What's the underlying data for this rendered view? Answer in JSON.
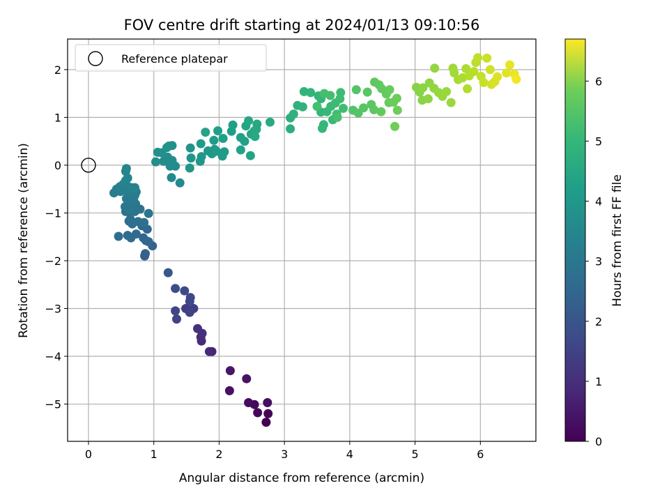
{
  "chart_data": {
    "type": "scatter",
    "title": "FOV centre drift starting at 2024/01/13 09:10:56",
    "xlabel": "Angular distance from reference (arcmin)",
    "ylabel": "Rotation from reference (arcmin)",
    "xlim": [
      -0.32,
      6.85
    ],
    "ylim": [
      -5.78,
      2.64
    ],
    "x_ticks": [
      0,
      1,
      2,
      3,
      4,
      5,
      6
    ],
    "y_ticks": [
      2,
      1,
      0,
      -1,
      -2,
      -3,
      -4,
      -5
    ],
    "x_tick_labels": [
      "0",
      "1",
      "2",
      "3",
      "4",
      "5",
      "6"
    ],
    "y_tick_labels": [
      "2",
      "1",
      "0",
      "−1",
      "−2",
      "−3",
      "−4",
      "−5"
    ],
    "grid": true,
    "legend": {
      "placement": "top-left",
      "entries": [
        "Reference platepar"
      ]
    },
    "reference_point": {
      "x": 0,
      "y": 0,
      "label": "Reference platepar"
    },
    "colorbar": {
      "label": "Hours from first FF file",
      "range": [
        0,
        6.7
      ],
      "ticks": [
        0,
        1,
        2,
        3,
        4,
        5,
        6
      ],
      "tick_labels": [
        "0",
        "1",
        "2",
        "3",
        "4",
        "5",
        "6"
      ],
      "colormap": "viridis"
    },
    "points": [
      [
        2.72,
        -5.38,
        0.0
      ],
      [
        2.75,
        -5.2,
        0.05
      ],
      [
        2.59,
        -5.18,
        0.1
      ],
      [
        2.54,
        -5.01,
        0.15
      ],
      [
        2.45,
        -4.97,
        0.2
      ],
      [
        2.74,
        -4.97,
        0.25
      ],
      [
        2.16,
        -4.72,
        0.3
      ],
      [
        2.42,
        -4.47,
        0.35
      ],
      [
        2.17,
        -4.3,
        0.42
      ],
      [
        1.89,
        -3.9,
        0.7
      ],
      [
        1.85,
        -3.9,
        0.75
      ],
      [
        1.73,
        -3.68,
        0.8
      ],
      [
        1.72,
        -3.6,
        0.85
      ],
      [
        1.74,
        -3.52,
        0.9
      ],
      [
        1.67,
        -3.42,
        0.95
      ],
      [
        1.49,
        -3.0,
        1.2
      ],
      [
        1.61,
        -3.0,
        1.25
      ],
      [
        1.55,
        -3.08,
        1.3
      ],
      [
        1.35,
        -3.22,
        1.35
      ],
      [
        1.33,
        -3.05,
        1.4
      ],
      [
        1.55,
        -2.85,
        1.45
      ],
      [
        1.56,
        -2.77,
        1.5
      ],
      [
        1.47,
        -2.63,
        1.55
      ],
      [
        1.33,
        -2.58,
        1.6
      ],
      [
        1.22,
        -2.25,
        1.85
      ],
      [
        0.86,
        -1.9,
        2.05
      ],
      [
        0.87,
        -1.85,
        2.08
      ],
      [
        0.98,
        -1.69,
        2.12
      ],
      [
        0.88,
        -1.58,
        2.15
      ],
      [
        0.84,
        -1.52,
        2.18
      ],
      [
        0.92,
        -1.6,
        2.2
      ],
      [
        0.9,
        -1.34,
        2.23
      ],
      [
        0.82,
        -1.27,
        2.26
      ],
      [
        0.73,
        -1.44,
        2.3
      ],
      [
        0.65,
        -1.52,
        2.32
      ],
      [
        0.6,
        -1.47,
        2.35
      ],
      [
        0.46,
        -1.49,
        2.38
      ],
      [
        0.62,
        -1.17,
        2.4
      ],
      [
        0.64,
        -1.13,
        2.42
      ],
      [
        0.67,
        -1.23,
        2.44
      ],
      [
        0.76,
        -1.18,
        2.46
      ],
      [
        0.85,
        -1.2,
        2.48
      ],
      [
        0.57,
        -0.97,
        2.5
      ],
      [
        0.63,
        -0.99,
        2.52
      ],
      [
        0.71,
        -0.97,
        2.54
      ],
      [
        0.74,
        -0.89,
        2.56
      ],
      [
        0.79,
        -0.92,
        2.58
      ],
      [
        0.72,
        -0.81,
        2.6
      ],
      [
        0.69,
        -0.85,
        2.62
      ],
      [
        0.92,
        -1.01,
        2.64
      ],
      [
        0.56,
        -0.87,
        2.66
      ],
      [
        0.62,
        -0.9,
        2.68
      ],
      [
        0.66,
        -0.78,
        2.7
      ],
      [
        0.69,
        -0.71,
        2.72
      ],
      [
        0.58,
        -0.7,
        2.74
      ],
      [
        0.63,
        -0.66,
        2.76
      ],
      [
        0.71,
        -0.63,
        2.78
      ],
      [
        0.73,
        -0.56,
        2.8
      ],
      [
        0.62,
        -0.55,
        2.82
      ],
      [
        0.56,
        -0.53,
        2.84
      ],
      [
        0.49,
        -0.55,
        2.86
      ],
      [
        0.43,
        -0.5,
        2.88
      ],
      [
        0.39,
        -0.58,
        2.9
      ],
      [
        0.48,
        -0.45,
        2.92
      ],
      [
        0.53,
        -0.4,
        2.94
      ],
      [
        0.59,
        -0.43,
        2.96
      ],
      [
        0.66,
        -0.47,
        2.98
      ],
      [
        0.71,
        -0.47,
        3.0
      ],
      [
        0.57,
        -0.32,
        3.02
      ],
      [
        0.6,
        -0.27,
        3.04
      ],
      [
        0.57,
        -0.13,
        3.06
      ],
      [
        0.58,
        -0.07,
        3.08
      ],
      [
        1.27,
        -0.26,
        3.15
      ],
      [
        1.4,
        -0.37,
        3.18
      ],
      [
        1.25,
        -0.02,
        3.2
      ],
      [
        1.33,
        -0.02,
        3.22
      ],
      [
        1.28,
        0.1,
        3.24
      ],
      [
        1.21,
        0.17,
        3.26
      ],
      [
        1.15,
        0.08,
        3.28
      ],
      [
        1.03,
        0.07,
        3.3
      ],
      [
        1.12,
        0.26,
        3.32
      ],
      [
        1.06,
        0.27,
        3.34
      ],
      [
        1.23,
        0.4,
        3.36
      ],
      [
        1.28,
        0.41,
        3.38
      ],
      [
        1.2,
        0.37,
        3.4
      ],
      [
        1.56,
        0.36,
        3.45
      ],
      [
        1.57,
        0.15,
        3.48
      ],
      [
        1.55,
        -0.06,
        3.5
      ],
      [
        1.71,
        0.08,
        3.52
      ],
      [
        1.73,
        0.18,
        3.54
      ],
      [
        1.83,
        0.3,
        3.56
      ],
      [
        1.93,
        0.33,
        3.58
      ],
      [
        1.89,
        0.24,
        3.6
      ],
      [
        1.96,
        0.29,
        3.62
      ],
      [
        2.05,
        0.19,
        3.64
      ],
      [
        2.08,
        0.28,
        3.66
      ],
      [
        1.72,
        0.45,
        3.68
      ],
      [
        1.92,
        0.52,
        3.7
      ],
      [
        1.98,
        0.72,
        3.72
      ],
      [
        2.06,
        0.56,
        3.74
      ],
      [
        2.19,
        0.71,
        3.76
      ],
      [
        2.21,
        0.84,
        3.78
      ],
      [
        2.33,
        0.58,
        3.8
      ],
      [
        2.39,
        0.5,
        3.82
      ],
      [
        2.33,
        0.32,
        3.84
      ],
      [
        2.48,
        0.2,
        3.86
      ],
      [
        1.79,
        0.69,
        3.88
      ],
      [
        2.49,
        0.65,
        3.9
      ],
      [
        2.54,
        0.72,
        3.92
      ],
      [
        2.41,
        0.82,
        3.94
      ],
      [
        2.45,
        0.93,
        3.96
      ],
      [
        2.58,
        0.86,
        3.98
      ],
      [
        2.57,
        0.75,
        4.0
      ],
      [
        2.55,
        0.6,
        4.02
      ],
      [
        2.78,
        0.9,
        4.04
      ],
      [
        3.09,
        0.76,
        4.2
      ],
      [
        3.09,
        0.99,
        4.23
      ],
      [
        3.14,
        1.07,
        4.26
      ],
      [
        3.2,
        1.25,
        4.3
      ],
      [
        3.28,
        1.22,
        4.32
      ],
      [
        3.3,
        1.54,
        4.35
      ],
      [
        3.4,
        1.52,
        4.38
      ],
      [
        3.52,
        1.45,
        4.4
      ],
      [
        3.56,
        1.39,
        4.42
      ],
      [
        3.56,
        1.11,
        4.44
      ],
      [
        3.6,
        0.85,
        4.46
      ],
      [
        3.58,
        0.77,
        4.48
      ],
      [
        3.65,
        1.12,
        4.5
      ],
      [
        3.71,
        1.23,
        4.52
      ],
      [
        3.74,
        0.95,
        4.54
      ],
      [
        3.78,
        1.3,
        4.56
      ],
      [
        3.85,
        1.39,
        4.58
      ],
      [
        3.86,
        1.52,
        4.6
      ],
      [
        3.9,
        1.19,
        4.62
      ],
      [
        3.8,
        1.07,
        4.64
      ],
      [
        3.7,
        1.46,
        4.66
      ],
      [
        3.5,
        1.23,
        4.68
      ],
      [
        3.61,
        1.5,
        4.7
      ],
      [
        3.81,
        1.0,
        4.72
      ],
      [
        4.05,
        1.15,
        4.85
      ],
      [
        4.1,
        1.58,
        4.88
      ],
      [
        4.13,
        1.09,
        4.9
      ],
      [
        4.21,
        1.2,
        4.92
      ],
      [
        4.27,
        1.53,
        4.94
      ],
      [
        4.33,
        1.27,
        4.96
      ],
      [
        4.37,
        1.16,
        4.98
      ],
      [
        4.38,
        1.74,
        5.0
      ],
      [
        4.45,
        1.68,
        5.02
      ],
      [
        4.49,
        1.6,
        5.04
      ],
      [
        4.48,
        1.12,
        5.06
      ],
      [
        4.56,
        1.49,
        5.08
      ],
      [
        4.6,
        1.31,
        5.1
      ],
      [
        4.61,
        1.58,
        5.12
      ],
      [
        4.67,
        1.32,
        5.14
      ],
      [
        4.72,
        1.4,
        5.16
      ],
      [
        4.73,
        1.15,
        5.18
      ],
      [
        4.69,
        0.81,
        5.2
      ],
      [
        5.02,
        1.63,
        5.45
      ],
      [
        5.07,
        1.53,
        5.48
      ],
      [
        5.11,
        1.36,
        5.5
      ],
      [
        5.12,
        1.62,
        5.52
      ],
      [
        5.2,
        1.39,
        5.54
      ],
      [
        5.22,
        1.72,
        5.56
      ],
      [
        5.29,
        1.61,
        5.58
      ],
      [
        5.3,
        2.03,
        5.6
      ],
      [
        5.36,
        1.52,
        5.62
      ],
      [
        5.42,
        1.44,
        5.64
      ],
      [
        5.48,
        1.54,
        5.66
      ],
      [
        5.55,
        1.31,
        5.68
      ],
      [
        5.58,
        2.03,
        5.72
      ],
      [
        5.6,
        1.93,
        5.76
      ],
      [
        5.66,
        1.79,
        5.8
      ],
      [
        5.73,
        1.83,
        5.84
      ],
      [
        5.78,
        2.02,
        5.88
      ],
      [
        5.8,
        1.6,
        5.9
      ],
      [
        5.83,
        1.87,
        5.94
      ],
      [
        5.9,
        1.96,
        5.98
      ],
      [
        5.93,
        2.15,
        6.02
      ],
      [
        5.96,
        2.25,
        6.06
      ],
      [
        6.01,
        1.86,
        6.1
      ],
      [
        6.05,
        1.73,
        6.14
      ],
      [
        6.1,
        2.24,
        6.18
      ],
      [
        6.15,
        2.0,
        6.22
      ],
      [
        6.17,
        1.69,
        6.26
      ],
      [
        6.22,
        1.75,
        6.3
      ],
      [
        6.26,
        1.85,
        6.34
      ],
      [
        6.4,
        1.93,
        6.4
      ],
      [
        6.45,
        2.1,
        6.46
      ],
      [
        6.52,
        1.91,
        6.52
      ],
      [
        6.55,
        1.8,
        6.6
      ]
    ]
  }
}
